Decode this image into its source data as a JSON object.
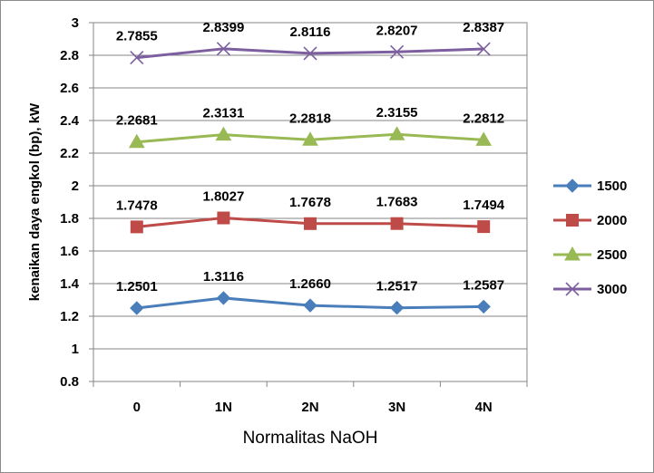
{
  "chart_data": {
    "type": "line",
    "title": "",
    "xlabel": "Normalitas NaOH",
    "ylabel": "kenaikan daya engkol (bp), kW",
    "categories": [
      "0",
      "1N",
      "2N",
      "3N",
      "4N"
    ],
    "ylim": [
      0.8,
      3
    ],
    "ytick_step": 0.2,
    "yticks": [
      "0.8",
      "1",
      "1.2",
      "1.4",
      "1.6",
      "1.8",
      "2",
      "2.2",
      "2.4",
      "2.6",
      "2.8",
      "3"
    ],
    "grid": true,
    "legend_position": "right",
    "series": [
      {
        "name": "1500",
        "marker": "diamond",
        "color": "#4a7ebb",
        "values": [
          1.2501,
          1.3116,
          1.266,
          1.2517,
          1.2587
        ],
        "labels": [
          "1.2501",
          "1.3116",
          "1.2660",
          "1.2517",
          "1.2587"
        ]
      },
      {
        "name": "2000",
        "marker": "square",
        "color": "#be4b48",
        "values": [
          1.7478,
          1.8027,
          1.7678,
          1.7683,
          1.7494
        ],
        "labels": [
          "1.7478",
          "1.8027",
          "1.7678",
          "1.7683",
          "1.7494"
        ]
      },
      {
        "name": "2500",
        "marker": "triangle",
        "color": "#98b954",
        "values": [
          2.2681,
          2.3131,
          2.2818,
          2.3155,
          2.2812
        ],
        "labels": [
          "2.2681",
          "2.3131",
          "2.2818",
          "2.3155",
          "2.2812"
        ]
      },
      {
        "name": "3000",
        "marker": "x",
        "color": "#7d5fa0",
        "values": [
          2.7855,
          2.8399,
          2.8116,
          2.8207,
          2.8387
        ],
        "labels": [
          "2.7855",
          "2.8399",
          "2.8116",
          "2.8207",
          "2.8387"
        ]
      }
    ]
  }
}
